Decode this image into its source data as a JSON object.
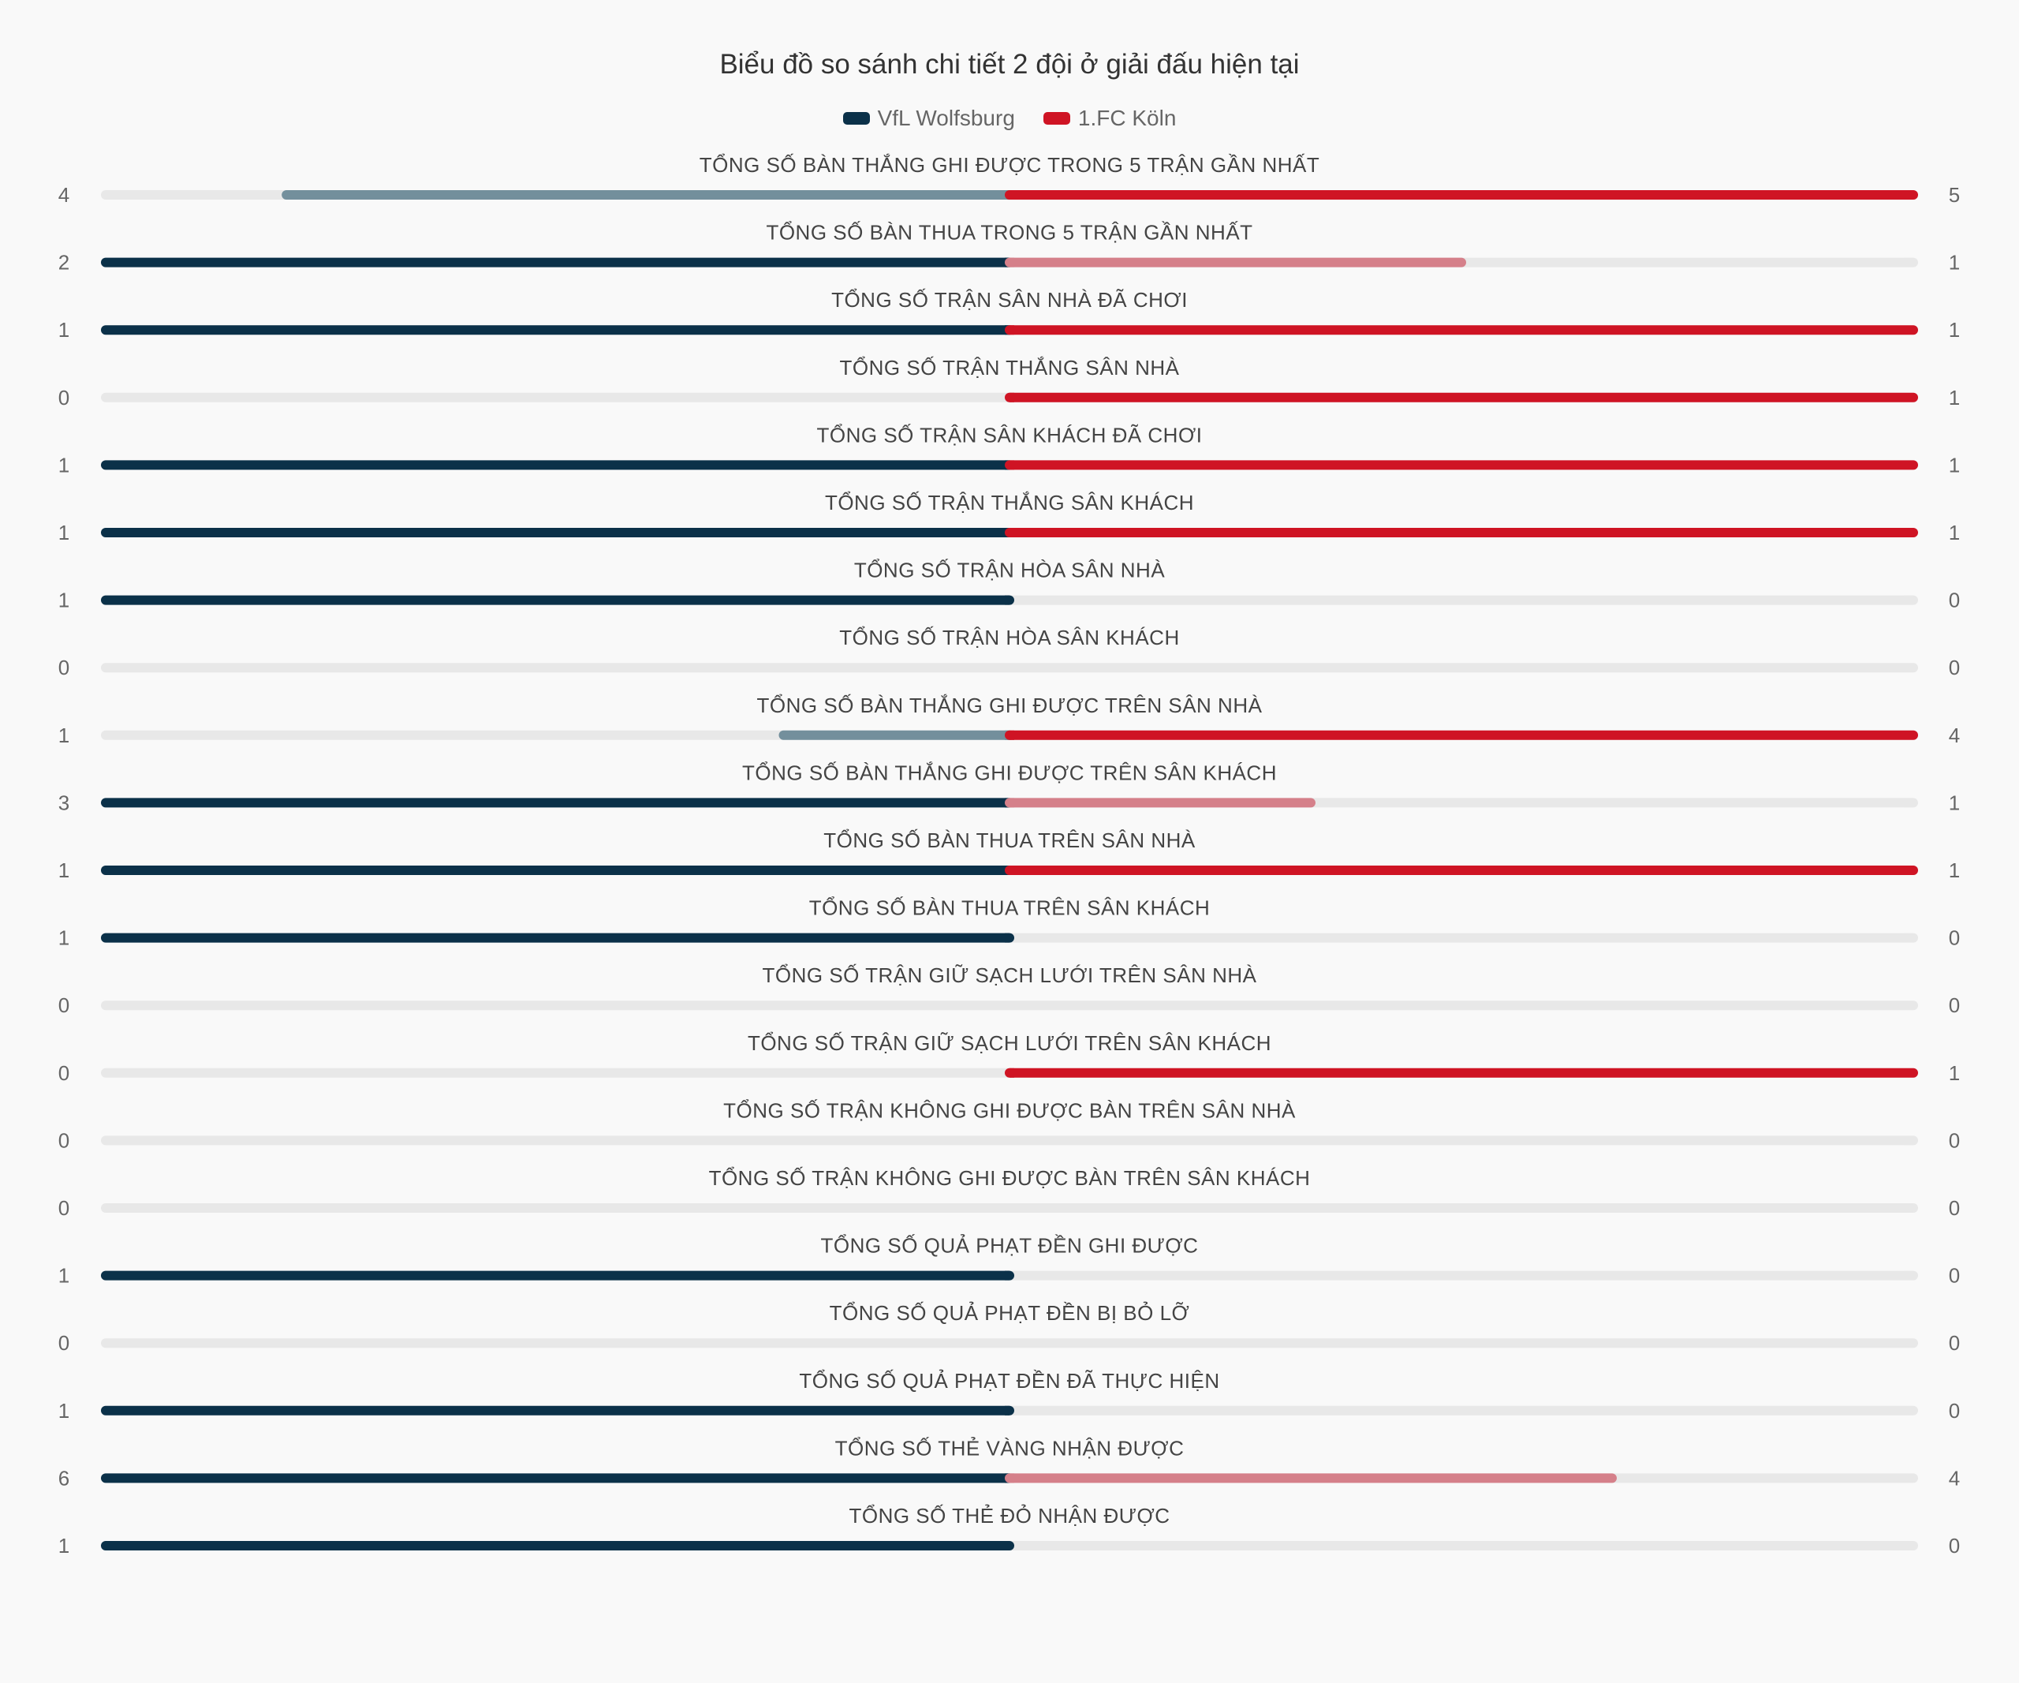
{
  "colors": {
    "team1": "#0b3149",
    "team1_light": "#738f9c",
    "team2": "#cf1424",
    "team2_light": "#d5808a",
    "track": "#e8e8e8"
  },
  "chart_data": {
    "type": "bar",
    "orientation": "diverging-horizontal",
    "title": "Biểu đồ so sánh chi tiết 2 đội ở giải đấu hiện tại",
    "series": [
      {
        "name": "VfL Wolfsburg",
        "values": [
          4,
          2,
          1,
          0,
          1,
          1,
          1,
          0,
          1,
          3,
          1,
          1,
          0,
          0,
          0,
          0,
          1,
          0,
          1,
          6,
          1
        ]
      },
      {
        "name": "1.FC Köln",
        "values": [
          5,
          1,
          1,
          1,
          1,
          1,
          0,
          0,
          4,
          1,
          1,
          0,
          0,
          1,
          0,
          0,
          0,
          0,
          0,
          4,
          0
        ]
      }
    ],
    "categories": [
      "TỔNG SỐ BÀN THẮNG GHI ĐƯỢC TRONG 5 TRẬN GẦN NHẤT",
      "TỔNG SỐ BÀN THUA TRONG 5 TRẬN GẦN NHẤT",
      "TỔNG SỐ TRẬN SÂN NHÀ ĐÃ CHƠI",
      "TỔNG SỐ TRẬN THẮNG SÂN NHÀ",
      "TỔNG SỐ TRẬN SÂN KHÁCH ĐÃ CHƠI",
      "TỔNG SỐ TRẬN THẮNG SÂN KHÁCH",
      "TỔNG SỐ TRẬN HÒA SÂN NHÀ",
      "TỔNG SỐ TRẬN HÒA SÂN KHÁCH",
      "TỔNG SỐ BÀN THẮNG GHI ĐƯỢC TRÊN SÂN NHÀ",
      "TỔNG SỐ BÀN THẮNG GHI ĐƯỢC TRÊN SÂN KHÁCH",
      "TỔNG SỐ BÀN THUA TRÊN SÂN NHÀ",
      "TỔNG SỐ BÀN THUA TRÊN SÂN KHÁCH",
      "TỔNG SỐ TRẬN GIỮ SẠCH LƯỚI TRÊN SÂN NHÀ",
      "TỔNG SỐ TRẬN GIỮ SẠCH LƯỚI TRÊN SÂN KHÁCH",
      "TỔNG SỐ TRẬN KHÔNG GHI ĐƯỢC BÀN TRÊN SÂN NHÀ",
      "TỔNG SỐ TRẬN KHÔNG GHI ĐƯỢC BÀN TRÊN SÂN KHÁCH",
      "TỔNG SỐ QUẢ PHẠT ĐỀN GHI ĐƯỢC",
      "TỔNG SỐ QUẢ PHẠT ĐỀN BỊ BỎ LỠ",
      "TỔNG SỐ QUẢ PHẠT ĐỀN ĐÃ THỰC HIỆN",
      "TỔNG SỐ THẺ VÀNG NHẬN ĐƯỢC",
      "TỔNG SỐ THẺ ĐỎ NHẬN ĐƯỢC"
    ]
  }
}
